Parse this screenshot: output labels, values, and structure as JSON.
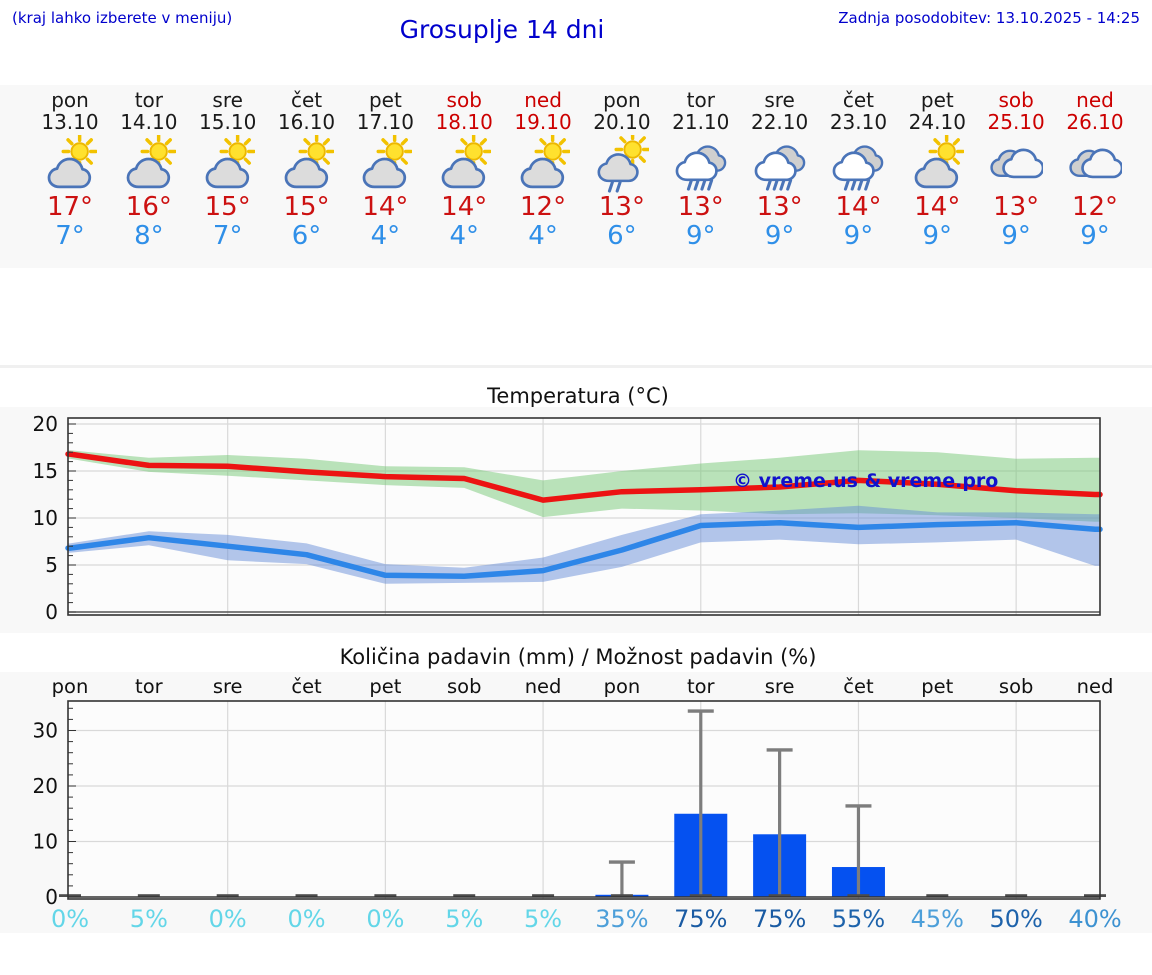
{
  "header": {
    "hint": "(kraj lahko izberete v meniju)",
    "title": "Grosuplje 14 dni",
    "updated": "Zadnja posodobitev: 13.10.2025 - 14:25"
  },
  "colors": {
    "accent_blue": "#0000cc",
    "high_temp_text": "#cc1111",
    "low_temp_text": "#2f8fe8",
    "weekend_red": "#cc0000",
    "strip_background": "#f8f8f8"
  },
  "forecast_strip": {
    "days": [
      {
        "name": "pon",
        "date": "13.10",
        "icon": "partly-cloudy",
        "high": "17°",
        "low": "7°",
        "weekend": false
      },
      {
        "name": "tor",
        "date": "14.10",
        "icon": "partly-cloudy",
        "high": "16°",
        "low": "8°",
        "weekend": false
      },
      {
        "name": "sre",
        "date": "15.10",
        "icon": "partly-cloudy",
        "high": "15°",
        "low": "7°",
        "weekend": false
      },
      {
        "name": "čet",
        "date": "16.10",
        "icon": "partly-cloudy",
        "high": "15°",
        "low": "6°",
        "weekend": false
      },
      {
        "name": "pet",
        "date": "17.10",
        "icon": "partly-cloudy",
        "high": "14°",
        "low": "4°",
        "weekend": false
      },
      {
        "name": "sob",
        "date": "18.10",
        "icon": "partly-cloudy",
        "high": "14°",
        "low": "4°",
        "weekend": true
      },
      {
        "name": "ned",
        "date": "19.10",
        "icon": "partly-cloudy",
        "high": "12°",
        "low": "4°",
        "weekend": true
      },
      {
        "name": "pon",
        "date": "20.10",
        "icon": "rain-shower-sun",
        "high": "13°",
        "low": "6°",
        "weekend": false
      },
      {
        "name": "tor",
        "date": "21.10",
        "icon": "rain",
        "high": "13°",
        "low": "9°",
        "weekend": false
      },
      {
        "name": "sre",
        "date": "22.10",
        "icon": "rain",
        "high": "13°",
        "low": "9°",
        "weekend": false
      },
      {
        "name": "čet",
        "date": "23.10",
        "icon": "rain",
        "high": "14°",
        "low": "9°",
        "weekend": false
      },
      {
        "name": "pet",
        "date": "24.10",
        "icon": "partly-cloudy",
        "high": "14°",
        "low": "9°",
        "weekend": false
      },
      {
        "name": "sob",
        "date": "25.10",
        "icon": "cloudy",
        "high": "13°",
        "low": "9°",
        "weekend": true
      },
      {
        "name": "ned",
        "date": "26.10",
        "icon": "cloudy",
        "high": "12°",
        "low": "9°",
        "weekend": true
      }
    ]
  },
  "chart_data": [
    {
      "type": "line",
      "title": "Temperatura (°C)",
      "categories": [
        "pon 13.10",
        "tor 14.10",
        "sre 15.10",
        "čet 16.10",
        "pet 17.10",
        "sob 18.10",
        "ned 19.10",
        "pon 20.10",
        "tor 21.10",
        "sre 22.10",
        "čet 23.10",
        "pet 24.10",
        "sob 25.10",
        "ned 26.10"
      ],
      "ylim": [
        0,
        20.6
      ],
      "yticks": [
        0,
        5,
        10,
        15,
        20
      ],
      "grid": true,
      "legend": "none",
      "watermark": "© vreme.us & vreme.pro",
      "series": [
        {
          "name": "najvišja temperatura",
          "color": "#ec1312",
          "values": [
            16.8,
            15.6,
            15.5,
            14.9,
            14.4,
            14.2,
            11.9,
            12.8,
            13.0,
            13.3,
            14.0,
            13.6,
            12.9,
            12.5
          ],
          "band_upper": [
            17.2,
            16.4,
            16.7,
            16.3,
            15.5,
            15.4,
            14.0,
            15.0,
            15.8,
            16.4,
            17.2,
            17.0,
            16.3,
            16.4
          ],
          "band_lower": [
            16.3,
            14.9,
            14.5,
            14.0,
            13.5,
            13.2,
            10.1,
            11.0,
            10.8,
            10.4,
            10.5,
            10.3,
            10.0,
            9.6
          ],
          "band_color": "rgba(118,200,118,0.5)"
        },
        {
          "name": "najnižja temperatura",
          "color": "#2e86e8",
          "values": [
            6.8,
            7.9,
            7.0,
            6.1,
            3.9,
            3.8,
            4.4,
            6.6,
            9.2,
            9.5,
            9.0,
            9.3,
            9.5,
            8.8
          ],
          "band_upper": [
            7.3,
            8.6,
            8.2,
            7.3,
            5.1,
            4.7,
            5.8,
            8.2,
            10.4,
            10.8,
            11.3,
            10.6,
            10.6,
            10.4
          ],
          "band_lower": [
            6.3,
            7.1,
            5.5,
            5.1,
            3.0,
            3.1,
            3.2,
            4.8,
            7.4,
            7.7,
            7.2,
            7.4,
            7.7,
            4.9
          ],
          "band_color": "rgba(98,138,216,0.48)"
        }
      ]
    },
    {
      "type": "bar",
      "title": "Količina padavin (mm) / Možnost padavin (%)",
      "categories": [
        "pon",
        "tor",
        "sre",
        "čet",
        "pet",
        "sob",
        "ned",
        "pon",
        "tor",
        "sre",
        "čet",
        "pet",
        "sob",
        "ned"
      ],
      "values": [
        0,
        0,
        0,
        0,
        0,
        0,
        0,
        0.4,
        15,
        11.3,
        5.4,
        0,
        0,
        0
      ],
      "whisker_max": [
        0,
        0,
        0,
        0,
        0,
        0,
        0,
        6.3,
        33.5,
        26.5,
        16.4,
        0,
        0,
        0
      ],
      "probabilities": [
        "0%",
        "5%",
        "0%",
        "0%",
        "0%",
        "5%",
        "5%",
        "35%",
        "75%",
        "75%",
        "55%",
        "45%",
        "50%",
        "40%"
      ],
      "probability_colors": [
        "#63d6e8",
        "#63d6e8",
        "#63d6e8",
        "#63d6e8",
        "#63d6e8",
        "#63d6e8",
        "#63d6e8",
        "#4d9fd9",
        "#1a5ba3",
        "#1a5ba3",
        "#1e63ab",
        "#4d9fd9",
        "#1e63ab",
        "#3d92d1"
      ],
      "ylim": [
        0,
        35.3
      ],
      "yticks": [
        0,
        10,
        20,
        30
      ],
      "grid": true,
      "bar_color": "#0551f0",
      "whisker_color": "#7d7d7d"
    }
  ]
}
